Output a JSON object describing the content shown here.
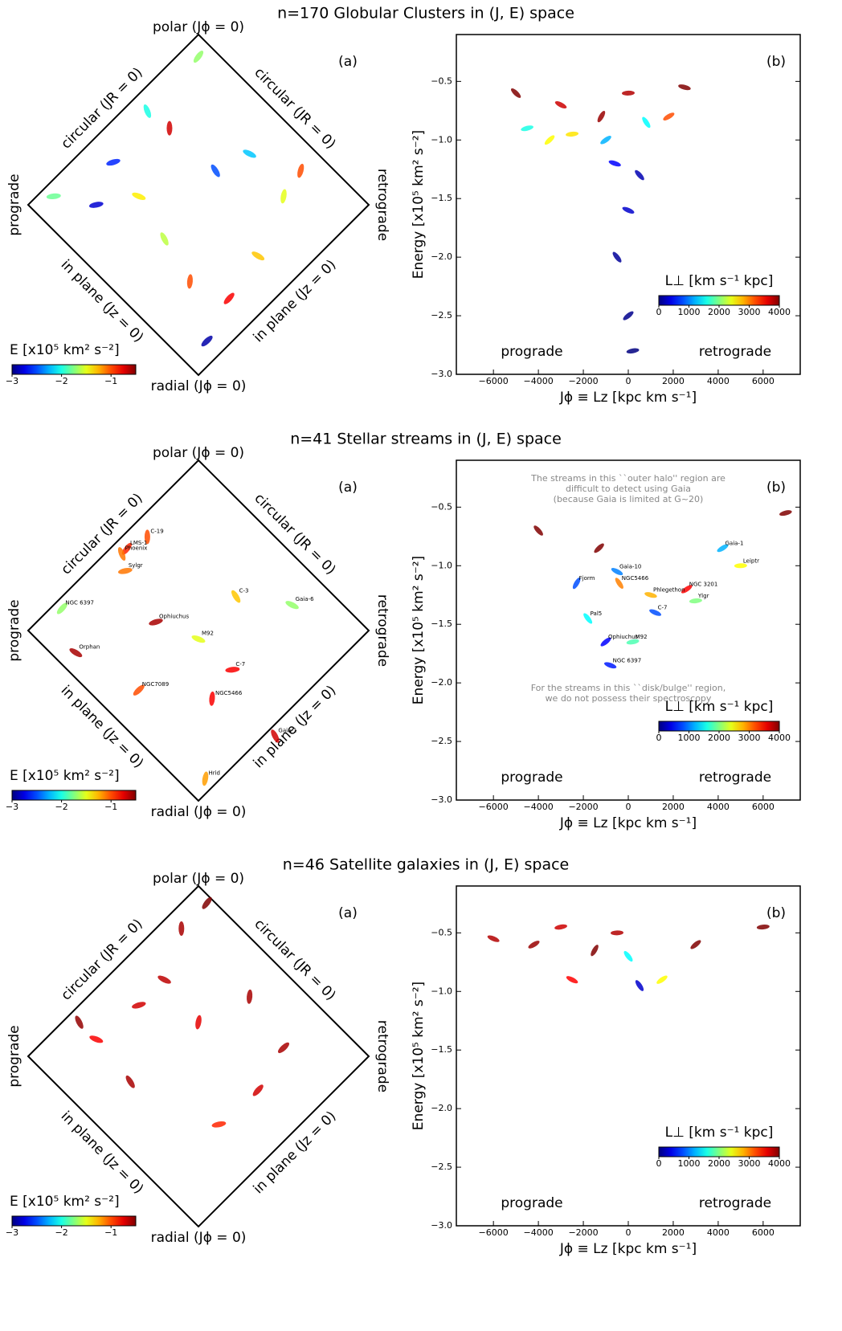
{
  "chart_data": [
    {
      "type": "diamond",
      "title": "n=170 Globular Clusters in (J, E) space",
      "labels": {
        "top": "polar (Jϕ = 0)",
        "left": "prograde",
        "right": "retrograde",
        "bottom": "radial (Jϕ = 0)",
        "upper_left": "circular (JR = 0)",
        "upper_right": "circular (JR = 0)",
        "lower_left": "in plane (Jz = 0)",
        "lower_right": "in plane (Jz = 0)"
      },
      "panel_label": "(a)",
      "xlim": [
        -1,
        1
      ],
      "ylim": [
        -1,
        1
      ],
      "colorbar": {
        "label": "E [x10⁵ km² s⁻²]",
        "lim": [
          -3,
          -0.5
        ],
        "ticks": [
          {
            "value": -3,
            "label": "−3"
          },
          {
            "value": -2,
            "label": "−2"
          },
          {
            "value": -1,
            "label": "−1"
          }
        ]
      },
      "points": {
        "x": [
          -0.17,
          0.0,
          -0.5,
          -0.35,
          0.1,
          -0.05,
          0.18,
          -0.6,
          0.3,
          -0.2,
          0.5,
          0.05,
          -0.85,
          0.35,
          -0.3,
          0.6
        ],
        "y": [
          0.45,
          0.87,
          0.25,
          0.05,
          0.2,
          -0.45,
          -0.55,
          0.0,
          0.3,
          -0.2,
          0.05,
          -0.8,
          0.05,
          -0.3,
          0.55,
          0.2
        ],
        "c": [
          -0.7,
          -1.7,
          -2.6,
          -1.4,
          -2.5,
          -1.0,
          -0.8,
          -2.8,
          -2.2,
          -1.6,
          -1.5,
          -2.9,
          -1.8,
          -1.3,
          -2.0,
          -1.0
        ]
      }
    },
    {
      "type": "scatter",
      "panel_label": "(b)",
      "xlabel": "Jϕ ≡ Lz [kpc km s⁻¹]",
      "ylabel": "Energy [x10⁵ km² s⁻²]",
      "region_labels": [
        "prograde",
        "retrograde"
      ],
      "xlim": [
        -7650,
        7650
      ],
      "ylim": [
        -3.0,
        -0.1
      ],
      "xticks": [
        {
          "value": -6000,
          "label": "−6000"
        },
        {
          "value": -4000,
          "label": "−4000"
        },
        {
          "value": -2000,
          "label": "−2000"
        },
        0,
        2000,
        4000,
        6000
      ],
      "yticks": [
        {
          "value": -3.0,
          "label": "−3.0"
        },
        {
          "value": -2.5,
          "label": "−2.5"
        },
        {
          "value": -2.0,
          "label": "−2.0"
        },
        {
          "value": -1.5,
          "label": "−1.5"
        },
        {
          "value": -1.0,
          "label": "−1.0"
        },
        {
          "value": -0.5,
          "label": "−0.5"
        }
      ],
      "colorbar": {
        "label": "L⊥ [km s⁻¹ kpc]",
        "lim": [
          0,
          4000
        ],
        "ticks": [
          0,
          1000,
          2000,
          3000,
          4000
        ]
      },
      "points": {
        "x": [
          -1200,
          1800,
          0,
          -3000,
          800,
          -1000,
          -2500,
          0,
          -500,
          0,
          200,
          -600,
          500,
          -3500,
          -4500,
          2500,
          -5000
        ],
        "y": [
          -0.8,
          -0.8,
          -0.6,
          -0.7,
          -0.85,
          -1.0,
          -0.95,
          -1.6,
          -2.0,
          -2.5,
          -2.8,
          -1.2,
          -1.3,
          -1.0,
          -0.9,
          -0.55,
          -0.6
        ],
        "c": [
          3900,
          3200,
          3800,
          3700,
          1500,
          1200,
          2600,
          300,
          100,
          50,
          0,
          500,
          200,
          2500,
          1600,
          4000,
          4000
        ]
      }
    },
    {
      "type": "diamond",
      "title": "n=41 Stellar streams in (J, E) space",
      "labels": {
        "top": "polar (Jϕ = 0)",
        "left": "prograde",
        "right": "retrograde",
        "bottom": "radial (Jϕ = 0)",
        "upper_left": "circular (JR = 0)",
        "upper_right": "circular (JR = 0)",
        "lower_left": "in plane (Jz = 0)",
        "lower_right": "in plane (Jz = 0)"
      },
      "panel_label": "(a)",
      "xlim": [
        -1,
        1
      ],
      "ylim": [
        -1,
        1
      ],
      "colorbar": {
        "label": "E [x10⁵ km² s⁻²]",
        "lim": [
          -3,
          -0.5
        ],
        "ticks": [
          {
            "value": -3,
            "label": "−3"
          },
          {
            "value": -2,
            "label": "−2"
          },
          {
            "value": -1,
            "label": "−1"
          }
        ]
      },
      "points": {
        "x": [
          -0.3,
          -0.42,
          -0.25,
          0.0,
          0.22,
          0.08,
          -0.8,
          -0.43,
          0.55,
          0.45,
          0.04,
          -0.35,
          0.2,
          -0.72,
          -0.45
        ],
        "y": [
          0.55,
          0.48,
          0.05,
          -0.05,
          0.2,
          -0.4,
          0.13,
          0.35,
          0.15,
          -0.62,
          -0.87,
          -0.35,
          -0.23,
          -0.13,
          0.45
        ],
        "c": [
          -1.0,
          -0.9,
          -0.6,
          -1.5,
          -1.3,
          -0.8,
          -1.7,
          -1.1,
          -1.7,
          -0.7,
          -1.2,
          -1.0,
          -0.8,
          -0.6,
          -1.1
        ],
        "labels": [
          "C-19",
          "LMS-1",
          "Ophiuchus",
          "M92",
          "C-3",
          "NGC5466",
          "NGC 6397",
          "Sylgr",
          "Gaia-6",
          "Gaia-1",
          "Hrid",
          "NGC7089",
          "C-7",
          "Orphan",
          "Phoenix"
        ]
      }
    },
    {
      "type": "scatter",
      "panel_label": "(b)",
      "xlabel": "Jϕ ≡ Lz [kpc km s⁻¹]",
      "ylabel": "Energy [x10⁵ km² s⁻²]",
      "region_labels": [
        "prograde",
        "retrograde"
      ],
      "annotations": [
        [
          "The streams in this ``outer halo'' region are",
          "difficult to detect using Gaia",
          "(because Gaia is limited at G~20)"
        ],
        [
          "For the streams in this ``disk/bulge'' region,",
          "we do not possess their spectroscopy"
        ]
      ],
      "xlim": [
        -7650,
        7650
      ],
      "ylim": [
        -3.0,
        -0.1
      ],
      "xticks": [
        {
          "value": -6000,
          "label": "−6000"
        },
        {
          "value": -4000,
          "label": "−4000"
        },
        {
          "value": -2000,
          "label": "−2000"
        },
        0,
        2000,
        4000,
        6000
      ],
      "yticks": [
        {
          "value": -3.0,
          "label": "−3.0"
        },
        {
          "value": -2.5,
          "label": "−2.5"
        },
        {
          "value": -2.0,
          "label": "−2.0"
        },
        {
          "value": -1.5,
          "label": "−1.5"
        },
        {
          "value": -1.0,
          "label": "−1.0"
        },
        {
          "value": -0.5,
          "label": "−0.5"
        }
      ],
      "colorbar": {
        "label": "L⊥ [km s⁻¹ kpc]",
        "lim": [
          0,
          4000
        ],
        "ticks": [
          0,
          1000,
          2000,
          3000,
          4000
        ]
      },
      "points": {
        "x": [
          -2300,
          4200,
          5000,
          -500,
          -400,
          2600,
          3000,
          1200,
          -1800,
          -1000,
          200,
          -800,
          -4000,
          -1300,
          7000,
          1000
        ],
        "y": [
          -1.15,
          -0.85,
          -1.0,
          -1.05,
          -1.15,
          -1.2,
          -1.3,
          -1.4,
          -1.45,
          -1.65,
          -1.65,
          -1.85,
          -0.7,
          -0.85,
          -0.55,
          -1.25
        ],
        "c": [
          800,
          1200,
          2500,
          1000,
          3000,
          3500,
          2000,
          800,
          1500,
          500,
          1800,
          600,
          4000,
          4000,
          4000,
          2800
        ],
        "labels": [
          "Fjorm",
          "Gaia-1",
          "Leiptr",
          "Gaia-10",
          "NGC5466",
          "NGC 3201",
          "Ylgr",
          "C-7",
          "Pal5",
          "Ophiuchus",
          "M92",
          "NGC 6397",
          null,
          null,
          null,
          "Phlegethon"
        ]
      }
    },
    {
      "type": "diamond",
      "title": "n=46 Satellite galaxies in (J, E) space",
      "labels": {
        "top": "polar (Jϕ = 0)",
        "left": "prograde",
        "right": "retrograde",
        "bottom": "radial (Jϕ = 0)",
        "upper_left": "circular (JR = 0)",
        "upper_right": "circular (JR = 0)",
        "lower_left": "in plane (Jz = 0)",
        "lower_right": "in plane (Jz = 0)"
      },
      "panel_label": "(a)",
      "xlim": [
        -1,
        1
      ],
      "ylim": [
        -1,
        1
      ],
      "colorbar": {
        "label": "E [x10⁵ km² s⁻²]",
        "lim": [
          -3,
          -0.5
        ],
        "ticks": [
          {
            "value": -3,
            "label": "−3"
          },
          {
            "value": -2,
            "label": "−2"
          },
          {
            "value": -1,
            "label": "−1"
          }
        ]
      },
      "points": {
        "x": [
          -0.1,
          0.05,
          -0.35,
          -0.6,
          -0.4,
          0.3,
          0.35,
          0.12,
          -0.2,
          -0.7,
          0.0,
          0.5
        ],
        "y": [
          0.75,
          0.9,
          0.3,
          0.1,
          -0.15,
          0.35,
          -0.2,
          -0.4,
          0.45,
          0.2,
          0.2,
          0.05
        ],
        "c": [
          -0.6,
          -0.5,
          -0.7,
          -0.8,
          -0.6,
          -0.6,
          -0.7,
          -0.9,
          -0.65,
          -0.55,
          -0.75,
          -0.6
        ]
      }
    },
    {
      "type": "scatter",
      "panel_label": "(b)",
      "xlabel": "Jϕ ≡ Lz [kpc km s⁻¹]",
      "ylabel": "Energy [x10⁵ km² s⁻²]",
      "region_labels": [
        "prograde",
        "retrograde"
      ],
      "xlim": [
        -7650,
        7650
      ],
      "ylim": [
        -3.0,
        -0.1
      ],
      "xticks": [
        {
          "value": -6000,
          "label": "−6000"
        },
        {
          "value": -4000,
          "label": "−4000"
        },
        {
          "value": -2000,
          "label": "−2000"
        },
        0,
        2000,
        4000,
        6000
      ],
      "yticks": [
        {
          "value": -3.0,
          "label": "−3.0"
        },
        {
          "value": -2.5,
          "label": "−2.5"
        },
        {
          "value": -2.0,
          "label": "−2.0"
        },
        {
          "value": -1.5,
          "label": "−1.5"
        },
        {
          "value": -1.0,
          "label": "−1.0"
        },
        {
          "value": -0.5,
          "label": "−0.5"
        }
      ],
      "colorbar": {
        "label": "L⊥ [km s⁻¹ kpc]",
        "lim": [
          0,
          4000
        ],
        "ticks": [
          0,
          1000,
          2000,
          3000,
          4000
        ]
      },
      "points": {
        "x": [
          -1500,
          -4200,
          -500,
          -2500,
          500,
          1500,
          6000,
          -6000,
          0,
          3000,
          -3000
        ],
        "y": [
          -0.65,
          -0.6,
          -0.5,
          -0.9,
          -0.95,
          -0.9,
          -0.45,
          -0.55,
          -0.7,
          -0.6,
          -0.45
        ],
        "c": [
          4000,
          3900,
          3800,
          3500,
          300,
          2500,
          4000,
          3800,
          1500,
          4000,
          3700
        ]
      }
    }
  ]
}
